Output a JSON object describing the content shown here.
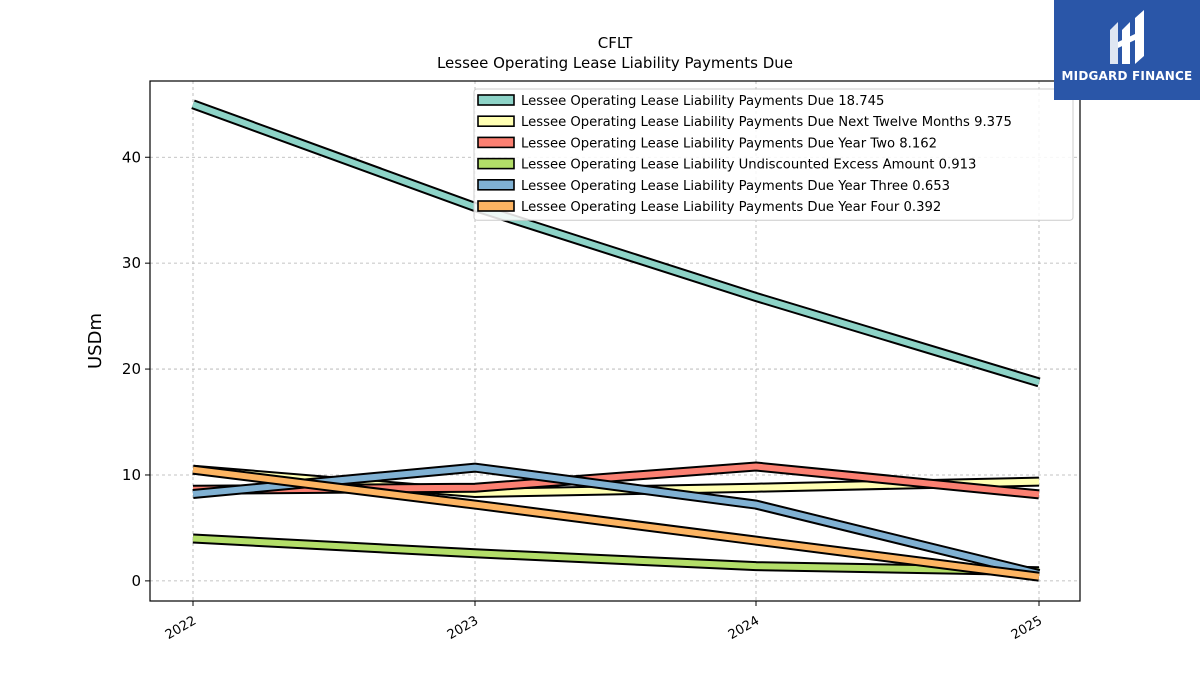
{
  "brand": {
    "name": "MIDGARD FINANCE",
    "color": "#2a56a8"
  },
  "chart_data": {
    "type": "line",
    "title": "CFLT",
    "subtitle": "Lessee Operating Lease Liability Payments Due",
    "xlabel": "",
    "ylabel": "USDm",
    "x": [
      "2022",
      "2023",
      "2024",
      "2025"
    ],
    "ylim": [
      -1.9,
      47.2
    ],
    "yticks": [
      0,
      10,
      20,
      30,
      40
    ],
    "grid": true,
    "legend_position": "top-right",
    "series": [
      {
        "name": "Lessee Operating Lease Liability Payments Due",
        "legend_value": "18.745",
        "color": "#8dd3c7",
        "values": [
          45.0,
          35.3,
          26.8,
          18.745
        ]
      },
      {
        "name": "Lessee Operating Lease Liability Payments Due Next Twelve Months",
        "legend_value": "9.375",
        "color": "#ffffb3",
        "values": [
          10.5,
          8.3,
          8.8,
          9.375
        ]
      },
      {
        "name": "Lessee Operating Lease Liability Payments Due Year Two",
        "legend_value": "8.162",
        "color": "#fb8072",
        "values": [
          8.6,
          8.8,
          10.8,
          8.162
        ]
      },
      {
        "name": "Lessee Operating Lease Liability Undiscounted Excess Amount",
        "legend_value": "0.913",
        "color": "#b3de69",
        "values": [
          4.0,
          2.6,
          1.4,
          0.913
        ]
      },
      {
        "name": "Lessee Operating Lease Liability Payments Due Year Three",
        "legend_value": "0.653",
        "color": "#80b1d3",
        "values": [
          8.2,
          10.7,
          7.2,
          0.653
        ]
      },
      {
        "name": "Lessee Operating Lease Liability Payments Due Year Four",
        "legend_value": "0.392",
        "color": "#fdb462",
        "values": [
          10.5,
          7.2,
          3.8,
          0.392
        ]
      }
    ]
  }
}
